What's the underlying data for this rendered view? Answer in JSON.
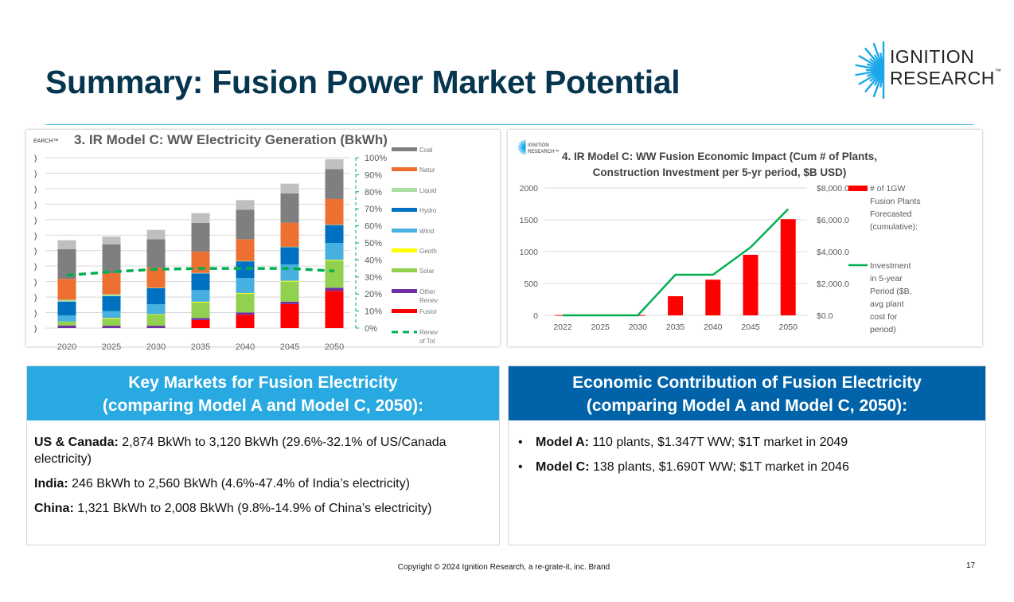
{
  "slide": {
    "title": "Summary: Fusion Power Market Potential",
    "copyright": "Copyright © 2024 Ignition Research, a re-grate-it, inc. Brand",
    "page_number": "17"
  },
  "logo": {
    "line1": "IGNITION",
    "line2": "RESEARCH",
    "tm": "™",
    "small_fragment": "EARCH™",
    "small_line1": "IGNITION",
    "small_line2": "RESEARCH™"
  },
  "colors": {
    "title": "#06354f",
    "panel1_header": "#29a9e1",
    "panel2_header": "#0063a9"
  },
  "key_markets": {
    "header_line1": "Key Markets for Fusion Electricity",
    "header_line2": "(comparing Model A and Model C, 2050):",
    "items": [
      {
        "label": "US & Canada:",
        "text": " 2,874 BkWh to 3,120 BkWh (29.6%-32.1% of US/Canada electricity)"
      },
      {
        "label": "India:",
        "text": " 246 BkWh to 2,560 BkWh (4.6%-47.4% of India’s electricity)"
      },
      {
        "label": "China:",
        "text": " 1,321 BkWh to 2,008 BkWh (9.8%-14.9% of China’s electricity)"
      }
    ]
  },
  "economic": {
    "header_line1": "Economic Contribution of Fusion Electricity",
    "header_line2": "(comparing Model A and  Model C, 2050):",
    "items": [
      {
        "label": "Model A:",
        "text": " 110 plants, $1.347T WW; $1T market in 2049"
      },
      {
        "label": "Model C:",
        "text": " 138 plants, $1.690T WW; $1T market in 2046"
      }
    ]
  },
  "chart_data": [
    {
      "type": "bar",
      "stacked": true,
      "title": "3. IR Model C: WW Electricity Generation (BkWh)",
      "categories": [
        "2020",
        "2025",
        "2030",
        "2035",
        "2040",
        "2045",
        "2050"
      ],
      "left_axis_note": "left tick labels cropped (shown as ')'), values in gridline units 0-11",
      "ylim": [
        0,
        11
      ],
      "y2lim": [
        0,
        100
      ],
      "y2_ticks": [
        "0%",
        "10%",
        "20%",
        "30%",
        "40%",
        "50%",
        "60%",
        "70%",
        "80%",
        "90%",
        "100%"
      ],
      "series": [
        {
          "name": "Fusior",
          "color": "#ff0000",
          "values": [
            0,
            0,
            0,
            0.52,
            0.86,
            1.55,
            2.4
          ]
        },
        {
          "name": "Other Renev",
          "color": "#7030a0",
          "values": [
            0.17,
            0.15,
            0.15,
            0.13,
            0.15,
            0.15,
            0.2
          ]
        },
        {
          "name": "Solar",
          "color": "#92d050",
          "values": [
            0.26,
            0.45,
            0.7,
            1.0,
            1.2,
            1.3,
            1.75
          ]
        },
        {
          "name": "Geoth",
          "color": "#ffff00",
          "values": [
            0,
            0.05,
            0.04,
            0.05,
            0.05,
            0.05,
            0.05
          ]
        },
        {
          "name": "Wind",
          "color": "#47b0e0",
          "values": [
            0.38,
            0.45,
            0.65,
            0.75,
            0.97,
            1.05,
            1.1
          ]
        },
        {
          "name": "Hydro",
          "color": "#0070c0",
          "values": [
            0.9,
            0.96,
            1.03,
            1.08,
            1.08,
            1.12,
            1.15
          ]
        },
        {
          "name": "Liquid",
          "color": "#a9dea0",
          "values": [
            0.12,
            0.12,
            0.03,
            0.03,
            0.03,
            0.03,
            0.03
          ]
        },
        {
          "name": "Natur",
          "color": "#ed7031",
          "values": [
            1.35,
            1.37,
            1.3,
            1.37,
            1.4,
            1.55,
            1.65
          ]
        },
        {
          "name": "Coal",
          "color": "#7f7f7f",
          "values": [
            1.92,
            1.86,
            1.84,
            1.86,
            1.9,
            1.9,
            1.93
          ]
        },
        {
          "name": "",
          "color": "#bfbfbf",
          "values": [
            0.57,
            0.5,
            0.6,
            0.63,
            0.62,
            0.62,
            0.64
          ]
        }
      ],
      "line": {
        "name": "Renev of Tot",
        "color": "#00b050",
        "axis": "right",
        "values": [
          31,
          33,
          34.5,
          35,
          35,
          35,
          33.5
        ]
      }
    },
    {
      "type": "bar+line",
      "title_line1": "4. IR Model C: WW Fusion Economic Impact (Cum # of Plants,",
      "title_line2": "Construction Investment per 5-yr period, $B USD)",
      "categories": [
        "2022",
        "2025",
        "2030",
        "2035",
        "2040",
        "2045",
        "2050"
      ],
      "ylim": [
        0,
        2000
      ],
      "y_ticks": [
        "0",
        "500",
        "1000",
        "1500",
        "2000"
      ],
      "y2lim": [
        0,
        8000
      ],
      "y2_ticks": [
        "$0.0",
        "$2,000.0",
        "$4,000.0",
        "$6,000.0",
        "$8,000.0"
      ],
      "bars": {
        "name_lines": [
          "# of 1GW",
          "Fusion Plants",
          "Forecasted",
          "(cumulative):"
        ],
        "color": "#ff0000",
        "values": [
          5,
          0,
          5,
          300,
          560,
          950,
          1510
        ]
      },
      "line": {
        "name_lines": [
          "Investment",
          "in 5-year",
          "Period ($B,",
          "avg plant",
          "cost for",
          "period)"
        ],
        "color": "#00b050",
        "values": [
          0,
          0,
          0,
          2550,
          2550,
          4270,
          6670
        ]
      }
    }
  ]
}
